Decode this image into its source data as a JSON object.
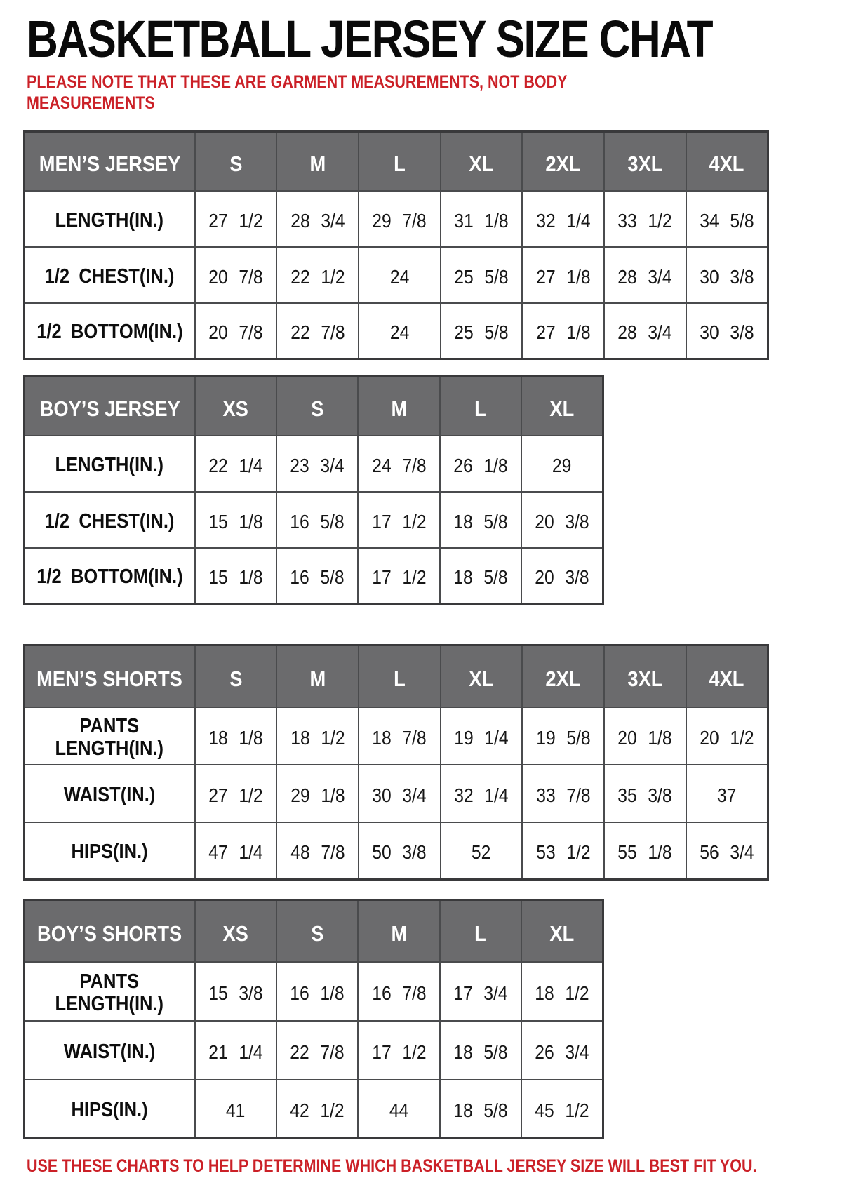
{
  "title": "BASKETBALL JERSEY SIZE CHAT",
  "note": "PLEASE NOTE THAT THESE ARE GARMENT MEASUREMENTS, NOT BODY MEASUREMENTS",
  "footer": "USE THESE CHARTS TO HELP DETERMINE WHICH BASKETBALL JERSEY SIZE WILL BEST FIT YOU.",
  "colors": {
    "accent_red": "#cb2027",
    "header_gray": "#6b6b6d",
    "grid_line": "#4a4b4d",
    "header_text": "#ffffff"
  },
  "chart_data": [
    {
      "type": "table",
      "name": "mens-jersey",
      "header": [
        "MEN’S JERSEY",
        "S",
        "M",
        "L",
        "XL",
        "2XL",
        "3XL",
        "4XL"
      ],
      "rows": [
        [
          "LENGTH(IN.)",
          "27 1/2",
          "28 3/4",
          "29 7/8",
          "31 1/8",
          "32 1/4",
          "33 1/2",
          "34 5/8"
        ],
        [
          "1/2 CHEST(IN.)",
          "20 7/8",
          "22 1/2",
          "24",
          "25 5/8",
          "27 1/8",
          "28 3/4",
          "30 3/8"
        ],
        [
          "1/2 BOTTOM(IN.)",
          "20 7/8",
          "22 7/8",
          "24",
          "25 5/8",
          "27 1/8",
          "28 3/4",
          "30 3/8"
        ]
      ]
    },
    {
      "type": "table",
      "name": "boys-jersey",
      "header": [
        "BOY’S JERSEY",
        "XS",
        "S",
        "M",
        "L",
        "XL"
      ],
      "rows": [
        [
          "LENGTH(IN.)",
          "22 1/4",
          "23 3/4",
          "24 7/8",
          "26 1/8",
          "29"
        ],
        [
          "1/2 CHEST(IN.)",
          "15 1/8",
          "16 5/8",
          "17 1/2",
          "18 5/8",
          "20 3/8"
        ],
        [
          "1/2 BOTTOM(IN.)",
          "15 1/8",
          "16 5/8",
          "17 1/2",
          "18 5/8",
          "20 3/8"
        ]
      ]
    },
    {
      "type": "table",
      "name": "mens-shorts",
      "header": [
        "MEN’S SHORTS",
        "S",
        "M",
        "L",
        "XL",
        "2XL",
        "3XL",
        "4XL"
      ],
      "rows": [
        [
          "PANTS\nLENGTH(IN.)",
          "18 1/8",
          "18 1/2",
          "18 7/8",
          "19 1/4",
          "19 5/8",
          "20 1/8",
          "20 1/2"
        ],
        [
          "WAIST(IN.)",
          "27 1/2",
          "29 1/8",
          "30 3/4",
          "32 1/4",
          "33 7/8",
          "35 3/8",
          "37"
        ],
        [
          "HIPS(IN.)",
          "47 1/4",
          "48 7/8",
          "50 3/8",
          "52",
          "53 1/2",
          "55 1/8",
          "56 3/4"
        ]
      ]
    },
    {
      "type": "table",
      "name": "boys-shorts",
      "header": [
        "BOY’S SHORTS",
        "XS",
        "S",
        "M",
        "L",
        "XL"
      ],
      "rows": [
        [
          "PANTS\nLENGTH(IN.)",
          "15 3/8",
          "16 1/8",
          "16 7/8",
          "17 3/4",
          "18 1/2"
        ],
        [
          "WAIST(IN.)",
          "21 1/4",
          "22 7/8",
          "17 1/2",
          "18 5/8",
          "26 3/4"
        ],
        [
          "HIPS(IN.)",
          "41",
          "42 1/2",
          "44",
          "18 5/8",
          "45 1/2"
        ]
      ]
    }
  ]
}
